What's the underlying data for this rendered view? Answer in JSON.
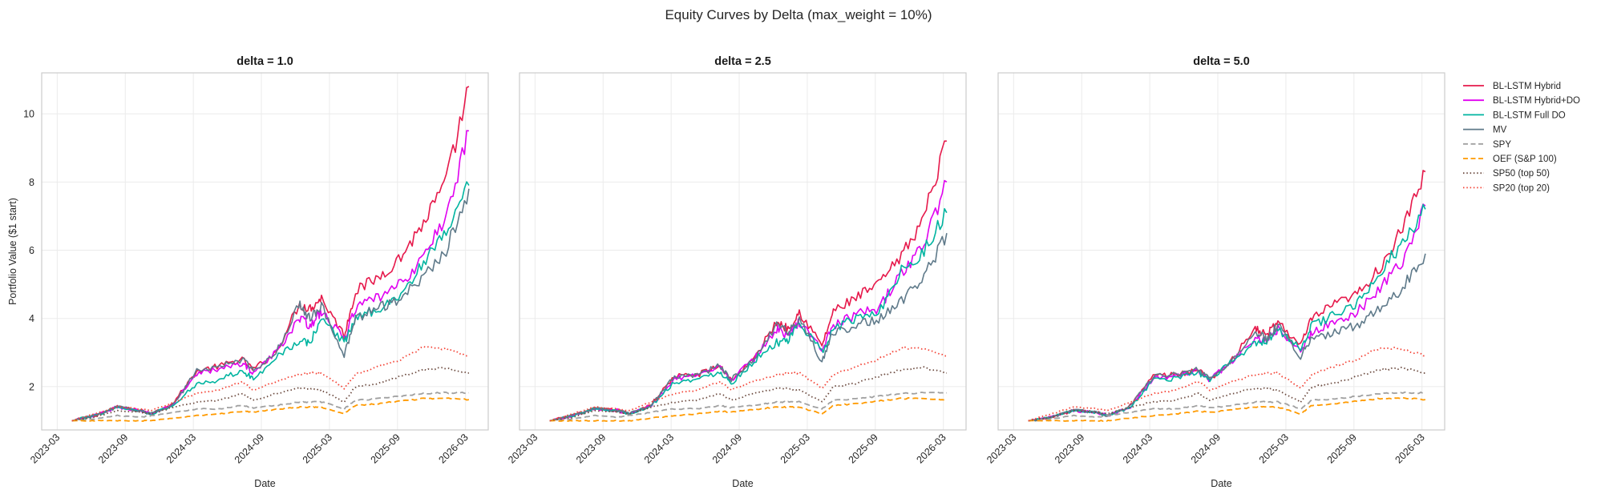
{
  "chart_data": {
    "type": "line",
    "title": "Equity Curves by Delta (max_weight = 10%)",
    "shared_y": true,
    "ylabel": "Portfolio Value ($1 start)",
    "xlabel": "Date",
    "ylim": [
      0.73,
      11.2
    ],
    "yticks": [
      2,
      4,
      6,
      8,
      10
    ],
    "xlim": [
      "2023-01-20",
      "2026-05-01"
    ],
    "xticks": [
      "2023-03",
      "2023-09",
      "2024-03",
      "2024-09",
      "2025-03",
      "2025-09",
      "2026-03"
    ],
    "grid": true,
    "legend_position": "outside-right",
    "series_styles": [
      {
        "name": "BL-LSTM Hybrid",
        "color": "#e6194b",
        "dash": "solid"
      },
      {
        "name": "BL-LSTM Hybrid+DO",
        "color": "#e000f0",
        "dash": "solid"
      },
      {
        "name": "BL-LSTM Full DO",
        "color": "#00b4a0",
        "dash": "solid"
      },
      {
        "name": "MV",
        "color": "#5f7a8a",
        "dash": "solid"
      },
      {
        "name": "SPY",
        "color": "#a0a0a0",
        "dash": "dashed"
      },
      {
        "name": "OEF (S&P 100)",
        "color": "#ff9a00",
        "dash": "dashed"
      },
      {
        "name": "SP50 (top 50)",
        "color": "#6d4c41",
        "dash": "dotted"
      },
      {
        "name": "SP20 (top 20)",
        "color": "#f44336",
        "dash": "dotted"
      }
    ],
    "x_dates": [
      "2023-04",
      "2023-06",
      "2023-08",
      "2023-10",
      "2023-11",
      "2024-01",
      "2024-03",
      "2024-05",
      "2024-07",
      "2024-08",
      "2024-10",
      "2024-12",
      "2025-01",
      "2025-02",
      "2025-04",
      "2025-05",
      "2025-07",
      "2025-09",
      "2025-11",
      "2026-01",
      "2026-03"
    ],
    "panels": [
      {
        "title": "delta = 1.0",
        "series": [
          {
            "name": "BL-LSTM Hybrid",
            "values": [
              1.0,
              1.15,
              1.4,
              1.3,
              1.2,
              1.55,
              2.45,
              2.6,
              2.8,
              2.5,
              3.0,
              4.4,
              4.3,
              4.6,
              3.5,
              4.8,
              5.2,
              5.8,
              6.8,
              8.0,
              10.8
            ]
          },
          {
            "name": "BL-LSTM Hybrid+DO",
            "values": [
              1.0,
              1.15,
              1.4,
              1.3,
              1.2,
              1.5,
              2.4,
              2.5,
              2.7,
              2.4,
              3.0,
              4.0,
              3.8,
              4.2,
              3.4,
              4.3,
              4.6,
              5.0,
              5.8,
              7.0,
              9.5
            ]
          },
          {
            "name": "BL-LSTM Full DO",
            "values": [
              1.0,
              1.15,
              1.4,
              1.3,
              1.2,
              1.45,
              2.1,
              2.2,
              2.5,
              2.2,
              2.9,
              3.3,
              3.3,
              4.0,
              3.3,
              4.0,
              4.3,
              4.7,
              5.6,
              6.5,
              7.9
            ]
          },
          {
            "name": "MV",
            "values": [
              1.0,
              1.15,
              1.4,
              1.3,
              1.2,
              1.5,
              2.45,
              2.6,
              2.8,
              2.5,
              3.0,
              4.4,
              4.0,
              4.4,
              2.9,
              4.0,
              4.3,
              4.6,
              5.2,
              6.0,
              7.8
            ]
          },
          {
            "name": "SPY",
            "values": [
              1.0,
              1.05,
              1.15,
              1.1,
              1.15,
              1.25,
              1.35,
              1.35,
              1.45,
              1.38,
              1.45,
              1.55,
              1.55,
              1.55,
              1.35,
              1.6,
              1.65,
              1.72,
              1.8,
              1.82,
              1.82
            ]
          },
          {
            "name": "OEF (S&P 100)",
            "values": [
              1.0,
              1.0,
              1.0,
              1.0,
              1.0,
              1.08,
              1.15,
              1.2,
              1.28,
              1.25,
              1.33,
              1.4,
              1.4,
              1.4,
              1.2,
              1.45,
              1.5,
              1.58,
              1.65,
              1.66,
              1.62
            ]
          },
          {
            "name": "SP50 (top 50)",
            "values": [
              1.0,
              1.1,
              1.3,
              1.25,
              1.2,
              1.4,
              1.55,
              1.6,
              1.8,
              1.6,
              1.8,
              1.95,
              1.95,
              1.9,
              1.55,
              2.0,
              2.1,
              2.3,
              2.5,
              2.55,
              2.4
            ]
          },
          {
            "name": "SP20 (top 20)",
            "values": [
              1.0,
              1.2,
              1.4,
              1.35,
              1.3,
              1.55,
              1.8,
              1.9,
              2.15,
              1.9,
              2.15,
              2.35,
              2.4,
              2.4,
              1.95,
              2.35,
              2.6,
              2.8,
              3.15,
              3.1,
              2.9
            ]
          }
        ]
      },
      {
        "title": "delta = 2.5",
        "series": [
          {
            "name": "BL-LSTM Hybrid",
            "values": [
              1.0,
              1.15,
              1.35,
              1.3,
              1.2,
              1.5,
              2.3,
              2.35,
              2.6,
              2.2,
              2.8,
              3.9,
              3.7,
              4.2,
              3.2,
              4.2,
              4.6,
              5.0,
              5.8,
              7.0,
              9.2
            ]
          },
          {
            "name": "BL-LSTM Hybrid+DO",
            "values": [
              1.0,
              1.15,
              1.35,
              1.3,
              1.2,
              1.45,
              2.25,
              2.3,
              2.55,
              2.2,
              2.8,
              3.7,
              3.5,
              3.9,
              3.1,
              3.8,
              4.1,
              4.3,
              5.3,
              6.2,
              8.0
            ]
          },
          {
            "name": "BL-LSTM Full DO",
            "values": [
              1.0,
              1.15,
              1.35,
              1.3,
              1.2,
              1.45,
              2.15,
              2.2,
              2.45,
              2.1,
              2.75,
              3.3,
              3.3,
              3.9,
              3.0,
              3.7,
              4.0,
              4.2,
              5.4,
              6.0,
              7.1
            ]
          },
          {
            "name": "MV",
            "values": [
              1.0,
              1.15,
              1.35,
              1.3,
              1.2,
              1.45,
              2.3,
              2.35,
              2.6,
              2.2,
              2.8,
              3.8,
              3.6,
              4.0,
              2.7,
              3.6,
              3.8,
              4.0,
              4.5,
              5.2,
              6.5
            ]
          },
          {
            "name": "SPY",
            "values": [
              1.0,
              1.05,
              1.15,
              1.1,
              1.15,
              1.25,
              1.35,
              1.35,
              1.45,
              1.38,
              1.45,
              1.55,
              1.55,
              1.55,
              1.35,
              1.6,
              1.65,
              1.72,
              1.8,
              1.82,
              1.82
            ]
          },
          {
            "name": "OEF (S&P 100)",
            "values": [
              1.0,
              1.0,
              1.0,
              1.0,
              1.0,
              1.08,
              1.15,
              1.2,
              1.28,
              1.25,
              1.33,
              1.4,
              1.4,
              1.4,
              1.2,
              1.45,
              1.5,
              1.58,
              1.65,
              1.66,
              1.62
            ]
          },
          {
            "name": "SP50 (top 50)",
            "values": [
              1.0,
              1.1,
              1.3,
              1.25,
              1.2,
              1.4,
              1.55,
              1.6,
              1.8,
              1.6,
              1.8,
              1.95,
              1.95,
              1.9,
              1.55,
              2.0,
              2.1,
              2.3,
              2.5,
              2.55,
              2.4
            ]
          },
          {
            "name": "SP20 (top 20)",
            "values": [
              1.0,
              1.2,
              1.4,
              1.35,
              1.3,
              1.55,
              1.8,
              1.9,
              2.15,
              1.9,
              2.15,
              2.35,
              2.4,
              2.4,
              1.95,
              2.35,
              2.6,
              2.8,
              3.15,
              3.1,
              2.9
            ]
          }
        ]
      },
      {
        "title": "delta = 5.0",
        "series": [
          {
            "name": "BL-LSTM Hybrid",
            "values": [
              1.0,
              1.1,
              1.3,
              1.25,
              1.15,
              1.45,
              2.3,
              2.35,
              2.5,
              2.2,
              2.8,
              3.7,
              3.5,
              3.9,
              3.2,
              4.0,
              4.4,
              4.7,
              5.5,
              6.6,
              8.3
            ]
          },
          {
            "name": "BL-LSTM Hybrid+DO",
            "values": [
              1.0,
              1.1,
              1.3,
              1.25,
              1.15,
              1.4,
              2.25,
              2.3,
              2.45,
              2.2,
              2.75,
              3.4,
              3.3,
              3.7,
              3.0,
              3.6,
              3.9,
              4.2,
              4.9,
              5.7,
              7.3
            ]
          },
          {
            "name": "BL-LSTM Full DO",
            "values": [
              1.0,
              1.1,
              1.3,
              1.25,
              1.15,
              1.4,
              2.2,
              2.25,
              2.4,
              2.2,
              2.75,
              3.3,
              3.3,
              3.7,
              3.1,
              3.8,
              4.1,
              4.4,
              5.4,
              6.2,
              7.2
            ]
          },
          {
            "name": "MV",
            "values": [
              1.0,
              1.1,
              1.3,
              1.25,
              1.15,
              1.45,
              2.3,
              2.35,
              2.5,
              2.2,
              2.8,
              3.6,
              3.4,
              3.8,
              2.9,
              3.4,
              3.6,
              3.8,
              4.3,
              4.9,
              5.9
            ]
          },
          {
            "name": "SPY",
            "values": [
              1.0,
              1.05,
              1.15,
              1.1,
              1.15,
              1.25,
              1.35,
              1.35,
              1.45,
              1.38,
              1.45,
              1.55,
              1.55,
              1.55,
              1.35,
              1.6,
              1.65,
              1.72,
              1.8,
              1.82,
              1.82
            ]
          },
          {
            "name": "OEF (S&P 100)",
            "values": [
              1.0,
              1.0,
              1.0,
              1.0,
              1.0,
              1.08,
              1.15,
              1.2,
              1.28,
              1.25,
              1.33,
              1.4,
              1.4,
              1.4,
              1.2,
              1.45,
              1.5,
              1.58,
              1.65,
              1.66,
              1.62
            ]
          },
          {
            "name": "SP50 (top 50)",
            "values": [
              1.0,
              1.1,
              1.3,
              1.25,
              1.2,
              1.4,
              1.55,
              1.6,
              1.8,
              1.6,
              1.8,
              1.95,
              1.95,
              1.9,
              1.55,
              2.0,
              2.1,
              2.3,
              2.5,
              2.55,
              2.4
            ]
          },
          {
            "name": "SP20 (top 20)",
            "values": [
              1.0,
              1.2,
              1.4,
              1.35,
              1.3,
              1.55,
              1.8,
              1.9,
              2.15,
              1.9,
              2.15,
              2.35,
              2.4,
              2.4,
              1.95,
              2.35,
              2.6,
              2.8,
              3.15,
              3.1,
              2.9
            ]
          }
        ]
      }
    ]
  }
}
